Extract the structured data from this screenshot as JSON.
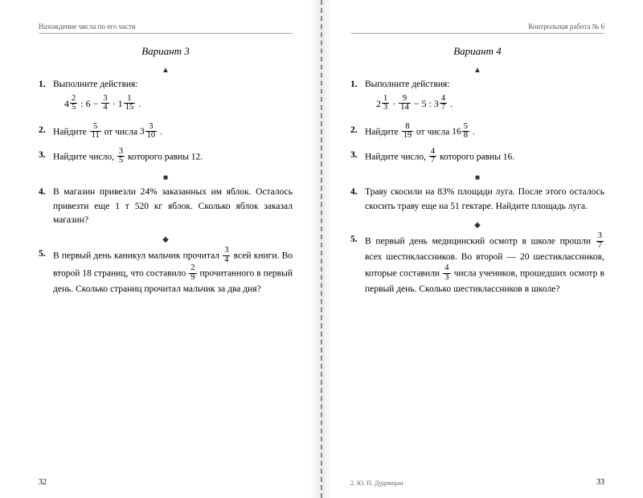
{
  "left": {
    "header": "Нахождение числа по его части",
    "variant": "Вариант 3",
    "markers": {
      "tri": "▲",
      "sq": "■",
      "dia": "◆"
    },
    "p1_label": "1.",
    "p1_text": "Выполните действия:",
    "p1_formula_html": "<span class='mixed'>4<span class='frac'><span class='n'>2</span><span class='d'>5</span></span></span> : 6 − <span class='frac'><span class='n'>3</span><span class='d'>4</span></span> · 1<span class='frac'><span class='n'>1</span><span class='d'>15</span></span> .",
    "p2_label": "2.",
    "p2_html": "Найдите <span class='frac'><span class='n'>5</span><span class='d'>11</span></span> от числа <span class='mixed'>3<span class='frac'><span class='n'>3</span><span class='d'>10</span></span></span> .",
    "p3_label": "3.",
    "p3_html": "Найдите число, <span class='frac'><span class='n'>3</span><span class='d'>5</span></span> которого равны 12.",
    "p4_label": "4.",
    "p4_text": "В магазин привезли 24% заказанных им яблок. Осталось привезти еще 1 т 520 кг яблок. Сколько яблок заказал магазин?",
    "p5_label": "5.",
    "p5_html": "В первый день каникул мальчик прочитал <span class='frac'><span class='n'>3</span><span class='d'>4</span></span> всей книги. Во второй 18 страниц, что составило <span class='frac'><span class='n'>2</span><span class='d'>9</span></span> прочитанного в первый день. Сколько страниц прочитал мальчик за два дня?",
    "page_num": "32"
  },
  "right": {
    "header": "Контрольная работа № 6",
    "variant": "Вариант 4",
    "p1_label": "1.",
    "p1_text": "Выполните действия:",
    "p1_formula_html": "<span class='mixed'>2<span class='frac'><span class='n'>1</span><span class='d'>3</span></span></span> · <span class='frac'><span class='n'>9</span><span class='d'>14</span></span> − 5 : <span class='mixed'>3<span class='frac'><span class='n'>4</span><span class='d'>7</span></span></span> .",
    "p2_label": "2.",
    "p2_html": "Найдите <span class='frac'><span class='n'>8</span><span class='d'>19</span></span> от числа <span class='mixed'>16<span class='frac'><span class='n'>5</span><span class='d'>8</span></span></span> .",
    "p3_label": "3.",
    "p3_html": "Найдите число, <span class='frac'><span class='n'>4</span><span class='d'>7</span></span> которого равны 16.",
    "p4_label": "4.",
    "p4_text": "Траву скосили на 83% площади луга. После этого осталось скосить траву еще на 51 гектаре. Найдите площадь луга.",
    "p5_label": "5.",
    "p5_html": "В первый день медицинский осмотр в школе прошли <span class='frac'><span class='n'>3</span><span class='d'>7</span></span> всех шестиклассников. Во второй — 20 шестиклассников, которые составили <span class='frac'><span class='n'>4</span><span class='d'>3</span></span> числа учеников, прошедших осмотр в первый день. Сколько шестиклассников в школе?",
    "page_num": "33",
    "credit": "2. Ю. П. Дудницын"
  }
}
